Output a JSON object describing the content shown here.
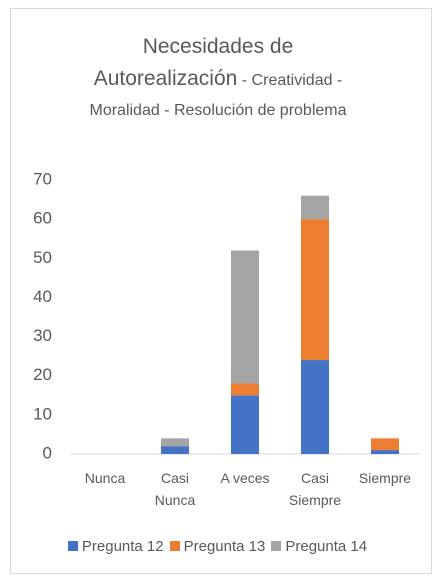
{
  "chart_data": {
    "type": "stacked-bar",
    "title": "Necesidades de Autorealización",
    "subtitle": "- Creatividad - Moralidad - Resolución de problema",
    "categories": [
      "Nunca",
      "Casi Nunca",
      "A veces",
      "Casi Siempre",
      "Siempre"
    ],
    "series": [
      {
        "name": "Pregunta 12",
        "color": "#4472c4",
        "values": [
          0,
          2,
          15,
          24,
          1
        ]
      },
      {
        "name": "Pregunta 13",
        "color": "#ed7d31",
        "values": [
          0,
          0,
          3,
          36,
          3
        ]
      },
      {
        "name": "Pregunta 14",
        "color": "#a5a5a5",
        "values": [
          0,
          2,
          34,
          6,
          0
        ]
      }
    ],
    "ylim": [
      0,
      70
    ],
    "yticks": [
      0,
      10,
      20,
      30,
      40,
      50,
      60,
      70
    ],
    "grid": false,
    "legend": "bottom"
  }
}
